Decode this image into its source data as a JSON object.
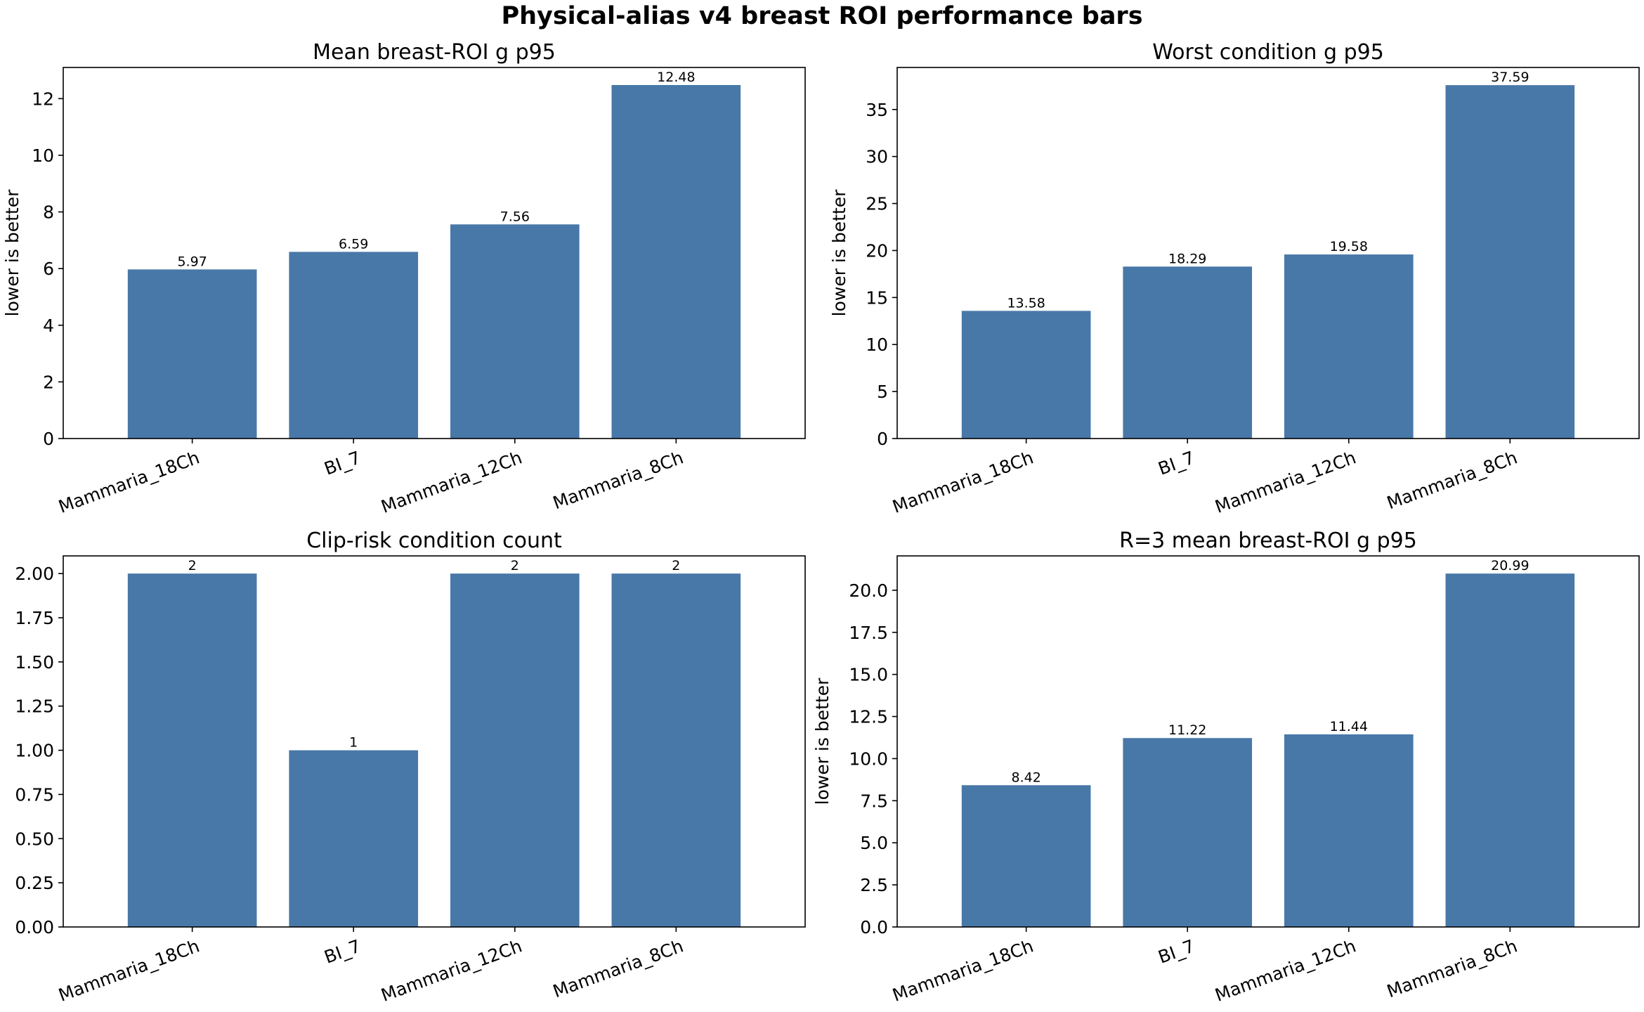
{
  "figure": {
    "title": "Physical-alias v4 breast ROI performance bars",
    "bar_color": "#4878a8"
  },
  "chart_data": [
    {
      "type": "bar",
      "title": "Mean breast-ROI g p95",
      "xlabel": "",
      "ylabel": "lower is better",
      "categories": [
        "Mammaria_18Ch",
        "BI_7",
        "Mammaria_12Ch",
        "Mammaria_8Ch"
      ],
      "values": [
        5.97,
        6.59,
        7.56,
        12.48
      ],
      "value_labels": [
        "5.97",
        "6.59",
        "7.56",
        "12.48"
      ],
      "ylim": [
        0,
        13.1
      ],
      "yticks": [
        0,
        2,
        4,
        6,
        8,
        10,
        12
      ],
      "ytick_labels": [
        "0",
        "2",
        "4",
        "6",
        "8",
        "10",
        "12"
      ],
      "grid": false,
      "legend": "none"
    },
    {
      "type": "bar",
      "title": "Worst condition g p95",
      "xlabel": "",
      "ylabel": "lower is better",
      "categories": [
        "Mammaria_18Ch",
        "BI_7",
        "Mammaria_12Ch",
        "Mammaria_8Ch"
      ],
      "values": [
        13.58,
        18.29,
        19.58,
        37.59
      ],
      "value_labels": [
        "13.58",
        "18.29",
        "19.58",
        "37.59"
      ],
      "ylim": [
        0,
        39.47
      ],
      "yticks": [
        0,
        5,
        10,
        15,
        20,
        25,
        30,
        35
      ],
      "ytick_labels": [
        "0",
        "5",
        "10",
        "15",
        "20",
        "25",
        "30",
        "35"
      ],
      "grid": false,
      "legend": "none"
    },
    {
      "type": "bar",
      "title": "Clip-risk condition count",
      "xlabel": "",
      "ylabel": "",
      "categories": [
        "Mammaria_18Ch",
        "BI_7",
        "Mammaria_12Ch",
        "Mammaria_8Ch"
      ],
      "values": [
        2,
        1,
        2,
        2
      ],
      "value_labels": [
        "2",
        "1",
        "2",
        "2"
      ],
      "ylim": [
        0,
        2.1
      ],
      "yticks": [
        0,
        0.25,
        0.5,
        0.75,
        1.0,
        1.25,
        1.5,
        1.75,
        2.0
      ],
      "ytick_labels": [
        "0.00",
        "0.25",
        "0.50",
        "0.75",
        "1.00",
        "1.25",
        "1.50",
        "1.75",
        "2.00"
      ],
      "grid": false,
      "legend": "none"
    },
    {
      "type": "bar",
      "title": "R=3 mean breast-ROI g p95",
      "xlabel": "",
      "ylabel": "lower is better",
      "categories": [
        "Mammaria_18Ch",
        "BI_7",
        "Mammaria_12Ch",
        "Mammaria_8Ch"
      ],
      "values": [
        8.42,
        11.22,
        11.44,
        20.99
      ],
      "value_labels": [
        "8.42",
        "11.22",
        "11.44",
        "20.99"
      ],
      "ylim": [
        0,
        22.04
      ],
      "yticks": [
        0,
        2.5,
        5,
        7.5,
        10,
        12.5,
        15,
        17.5,
        20
      ],
      "ytick_labels": [
        "0.0",
        "2.5",
        "5.0",
        "7.5",
        "10.0",
        "12.5",
        "15.0",
        "17.5",
        "20.0"
      ],
      "grid": false,
      "legend": "none"
    }
  ]
}
